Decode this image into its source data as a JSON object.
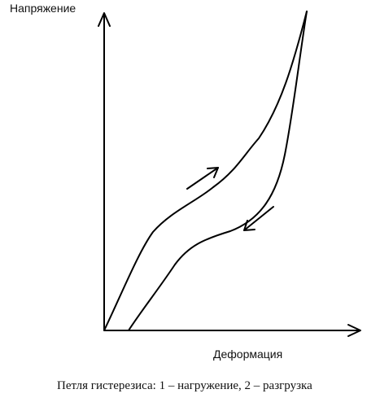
{
  "diagram": {
    "y_axis_label": "Напряжение",
    "x_axis_label": "Деформация",
    "caption": "Петля гистерезиса: 1 – нагружение, 2 – разгрузка",
    "curves": [
      {
        "name": "loading",
        "direction_indicator": "up-right"
      },
      {
        "name": "unloading",
        "direction_indicator": "down-left"
      }
    ],
    "line_color": "#000000"
  }
}
